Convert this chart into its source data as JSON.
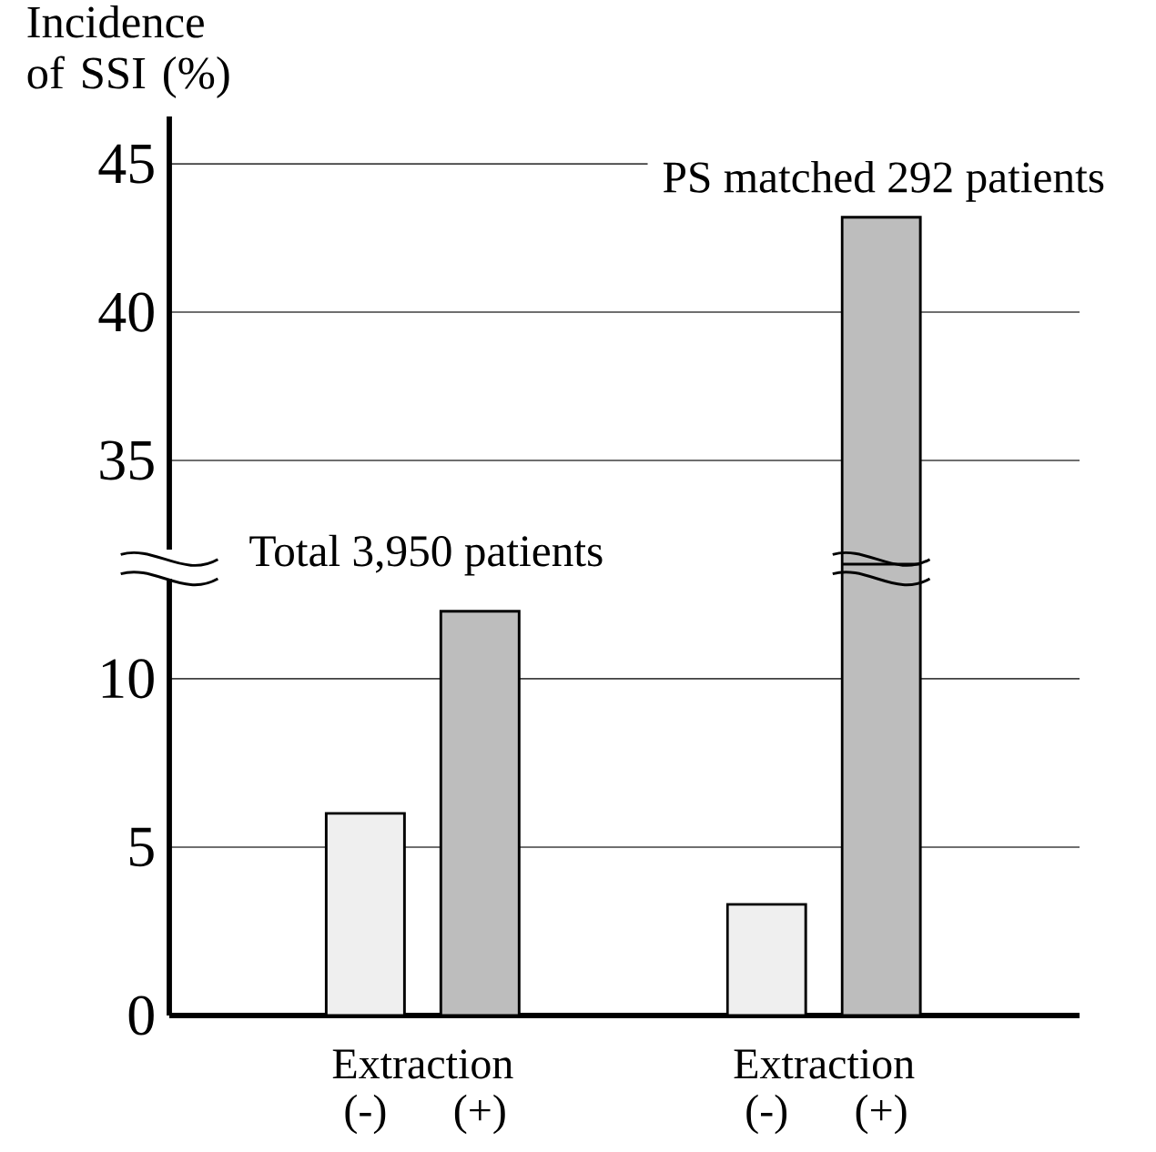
{
  "chart_data": [
    {
      "type": "bar",
      "ylabel": "Incidence of SSI (%)",
      "categories": [
        null,
        null,
        null,
        null
      ],
      "values": [
        null,
        null,
        null,
        43.2
      ],
      "colors": [
        "#efefef",
        "#bdbdbd",
        "#efefef",
        "#bdbdbd"
      ],
      "ylim": [
        31.5,
        46.6
      ],
      "yticks": [
        35,
        40,
        45
      ],
      "grid": "y",
      "tick_labels": "y",
      "annotations": [
        "PS matched  292 patients"
      ]
    },
    {
      "type": "bar",
      "categories": [
        "(-)",
        "(+)",
        "(-)",
        "(+)"
      ],
      "values": [
        6.0,
        12.0,
        3.3,
        13.4
      ],
      "colors": [
        "#efefef",
        "#bdbdbd",
        "#efefef",
        "#bdbdbd"
      ],
      "ylim": [
        0,
        13.4
      ],
      "yticks": [
        0,
        5,
        10
      ],
      "grid": "y",
      "annotations": [
        "Total 3,950 patients",
        "Extraction",
        "Extraction"
      ]
    }
  ]
}
